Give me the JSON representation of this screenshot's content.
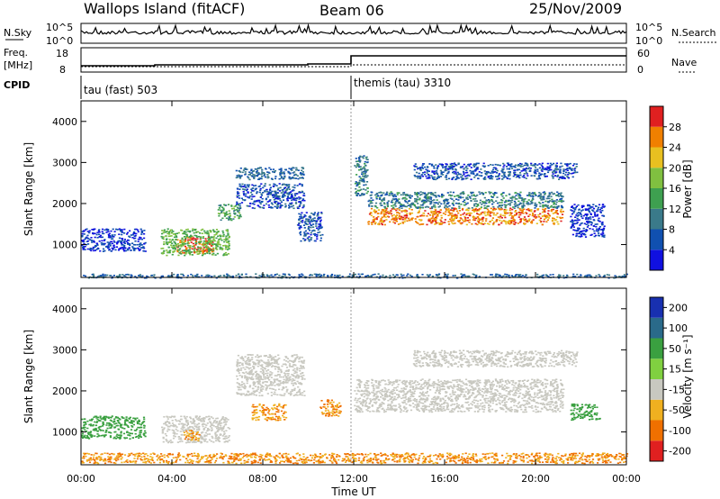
{
  "header": {
    "title": "Wallops Island (fitACF)",
    "beam": "Beam 06",
    "date": "25/Nov/2009"
  },
  "noise_panel": {
    "left_label": "N.Sky",
    "left_ticks": [
      "10^5",
      "10^0"
    ],
    "right_ticks": [
      "10^5",
      "10^0"
    ],
    "right_label": "N.Search"
  },
  "freq_panel": {
    "left_label_1": "Freq.",
    "left_label_2": "[MHz]",
    "left_ticks": [
      "18",
      "8"
    ],
    "right_ticks": [
      "60",
      "0"
    ],
    "right_label": "Nave"
  },
  "cpid": {
    "label": "CPID",
    "mode_1": "tau (fast) 503",
    "mode_2": "themis (tau) 3310",
    "switch_time_h": 12
  },
  "axes": {
    "ylabel": "Slant Range [km]",
    "y_ticks": [
      "4000",
      "3000",
      "2000",
      "1000"
    ],
    "y_values": [
      4000,
      3000,
      2000,
      1000
    ],
    "ylim": [
      200,
      4500
    ],
    "xlim": [
      0,
      24
    ],
    "x_ticks": [
      "00:00",
      "04:00",
      "08:00",
      "12:00",
      "16:00",
      "20:00",
      "00:00"
    ],
    "x_values": [
      0,
      4,
      8,
      12,
      16,
      20,
      24
    ],
    "xlabel": "Time UT"
  },
  "power_scale": {
    "label": "Power [dB]",
    "ticks": [
      "4",
      "8",
      "12",
      "16",
      "20",
      "24",
      "28"
    ],
    "colors": [
      "#1010e0",
      "#1050b0",
      "#3a7a8a",
      "#3ea050",
      "#80c040",
      "#e8c020",
      "#f08000",
      "#e02020"
    ]
  },
  "velocity_scale": {
    "label": "Velocity [m s⁻¹]",
    "ticks": [
      "200",
      "100",
      "50",
      "15",
      "-15",
      "-50",
      "-100",
      "-200"
    ],
    "colors": [
      "#1830b0",
      "#2a6a8a",
      "#3aa040",
      "#80d040",
      "#c8c8c0",
      "#f0b020",
      "#f07000",
      "#e02020"
    ]
  },
  "chart_data": {
    "type": "heatmap",
    "title": "Wallops Island (fitACF)",
    "xlabel": "Time UT",
    "ylabel": "Slant Range [km]",
    "xlim": [
      0,
      24
    ],
    "ylim": [
      200,
      4500
    ],
    "power_regions": [
      {
        "t0": 0.0,
        "t1": 2.8,
        "r0": 850,
        "r1": 1400,
        "level": 4
      },
      {
        "t0": 4.2,
        "t1": 5.8,
        "r0": 800,
        "r1": 1200,
        "level": 28
      },
      {
        "t0": 3.5,
        "t1": 6.5,
        "r0": 750,
        "r1": 1400,
        "level": 16
      },
      {
        "t0": 6.0,
        "t1": 7.0,
        "r0": 1600,
        "r1": 2000,
        "level": 14
      },
      {
        "t0": 6.8,
        "t1": 9.8,
        "r0": 2600,
        "r1": 2900,
        "level": 8
      },
      {
        "t0": 6.8,
        "t1": 9.8,
        "r0": 1900,
        "r1": 2500,
        "level": 6
      },
      {
        "t0": 9.5,
        "t1": 10.6,
        "r0": 1100,
        "r1": 1800,
        "level": 6
      },
      {
        "t0": 12.0,
        "t1": 12.6,
        "r0": 2200,
        "r1": 3200,
        "level": 10
      },
      {
        "t0": 12.6,
        "t1": 21.2,
        "r0": 1500,
        "r1": 1900,
        "level": 26
      },
      {
        "t0": 12.6,
        "t1": 21.2,
        "r0": 1900,
        "r1": 2300,
        "level": 10
      },
      {
        "t0": 14.6,
        "t1": 21.8,
        "r0": 2600,
        "r1": 3000,
        "level": 6
      },
      {
        "t0": 21.5,
        "t1": 23.0,
        "r0": 1200,
        "r1": 2000,
        "level": 4
      },
      {
        "t0": 0.0,
        "t1": 24.0,
        "r0": 200,
        "r1": 300,
        "level": 8
      }
    ],
    "velocity_regions": [
      {
        "t0": 0.0,
        "t1": 2.8,
        "r0": 850,
        "r1": 1400,
        "level": 50
      },
      {
        "t0": 3.5,
        "t1": 6.5,
        "r0": 750,
        "r1": 1400,
        "level": 0
      },
      {
        "t0": 4.5,
        "t1": 5.2,
        "r0": 800,
        "r1": 1050,
        "level": -50
      },
      {
        "t0": 7.5,
        "t1": 9.0,
        "r0": 1300,
        "r1": 1700,
        "level": -50
      },
      {
        "t0": 10.5,
        "t1": 11.4,
        "r0": 1400,
        "r1": 1800,
        "level": -50
      },
      {
        "t0": 6.8,
        "t1": 9.8,
        "r0": 1900,
        "r1": 2900,
        "level": 0
      },
      {
        "t0": 12.0,
        "t1": 21.2,
        "r0": 1500,
        "r1": 2300,
        "level": 0
      },
      {
        "t0": 14.6,
        "t1": 21.8,
        "r0": 2600,
        "r1": 3000,
        "level": 0
      },
      {
        "t0": 21.5,
        "t1": 22.8,
        "r0": 1300,
        "r1": 1700,
        "level": 50
      },
      {
        "t0": 0.0,
        "t1": 24.0,
        "r0": 250,
        "r1": 500,
        "level": -50
      }
    ]
  }
}
